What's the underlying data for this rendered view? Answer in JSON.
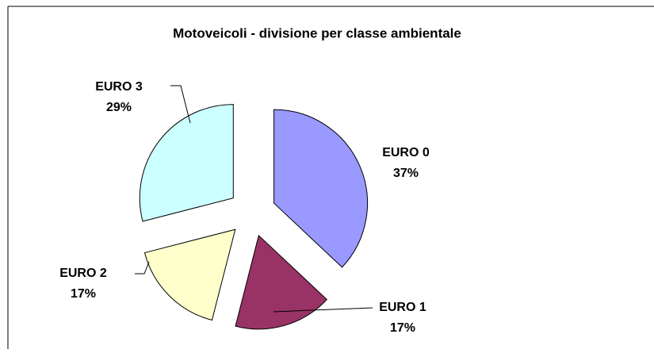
{
  "chart_data": {
    "type": "pie",
    "title": "Motoveicoli - divisione per classe ambientale",
    "categories": [
      "EURO 0",
      "EURO 1",
      "EURO 2",
      "EURO 3"
    ],
    "values": [
      37,
      17,
      17,
      29
    ],
    "value_labels": [
      "37%",
      "17%",
      "17%",
      "29%"
    ],
    "colors": [
      "#9999ff",
      "#993366",
      "#ffffcc",
      "#ccffff"
    ]
  }
}
